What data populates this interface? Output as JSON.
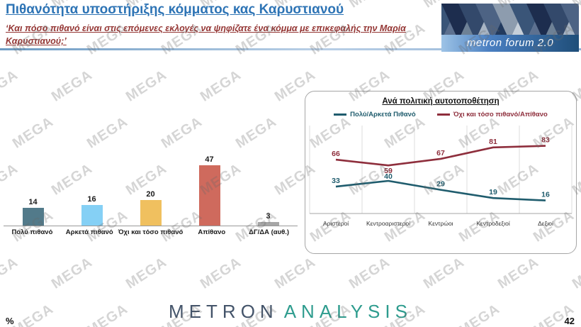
{
  "watermark": "MEGA",
  "header": {
    "title": "Πιθανότητα υποστήριξης κόμματος κας Καρυστιανού",
    "subtitle": "‘Και πόσο πιθανό είναι στις επόμενες εκλογές να ψηφίζατε ένα κόμμα με επικεφαλής την Μαρία Καρυστιανού;’",
    "logo_text": "metron forum 2.0"
  },
  "chart_data": [
    {
      "type": "bar",
      "title": "",
      "categories": [
        "Πολύ πιθανό",
        "Αρκετά πιθανό",
        "Όχι και τόσο πιθανό",
        "Απίθανο",
        "ΔΓ/ΔΑ (αυθ.)"
      ],
      "values": [
        14,
        16,
        20,
        47,
        3
      ],
      "colors": [
        "#527a8a",
        "#85d0f5",
        "#f0c05f",
        "#cf6a5d",
        "#a6a6a6"
      ],
      "xlabel": "",
      "ylabel": "",
      "ylim": [
        0,
        55
      ],
      "grid": false
    },
    {
      "type": "line",
      "title": "Ανά πολιτική αυτοτοποθέτηση",
      "categories": [
        "Αριστεροί",
        "Κεντροαριστεροί",
        "Κεντρώοι",
        "Κεντροδεξιοί",
        "Δεξιοί"
      ],
      "series": [
        {
          "name": "Πολύ/Αρκετά Πιθανό",
          "values": [
            33,
            40,
            29,
            19,
            16
          ],
          "color": "#1f5c6d"
        },
        {
          "name": "Όχι και τόσο πιθανό/Απίθανο",
          "values": [
            66,
            59,
            67,
            81,
            83
          ],
          "color": "#8e2e3c"
        }
      ],
      "ylim": [
        0,
        100
      ],
      "grid": "vertical",
      "legend_position": "top"
    }
  ],
  "footer": {
    "brand_metron": "METRON",
    "brand_analysis": "ANALYSIS",
    "percent_label": "%",
    "page_number": "42"
  }
}
